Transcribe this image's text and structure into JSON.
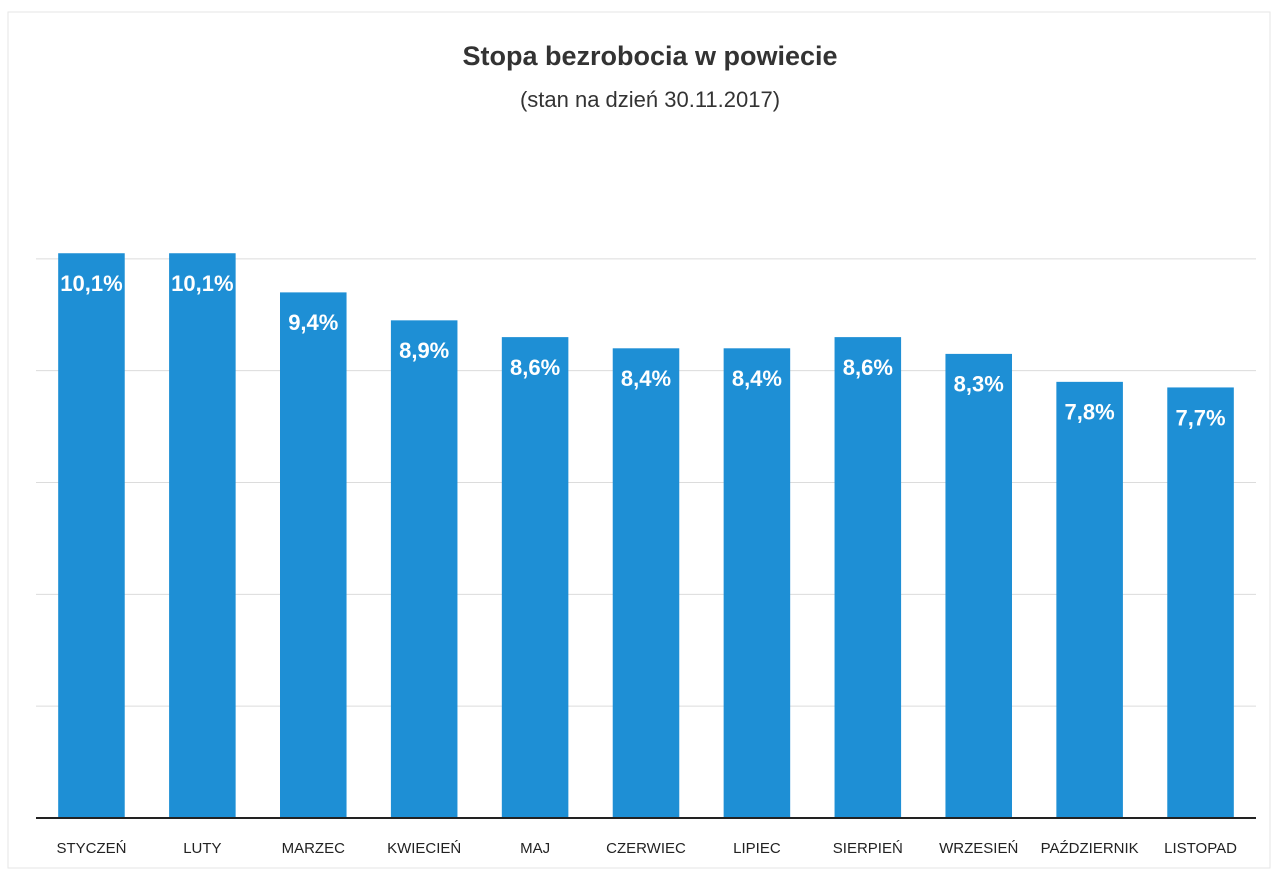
{
  "chart_data": {
    "type": "bar",
    "title": "Stopa bezrobocia w powiecie",
    "subtitle": "(stan na dzień 30.11.2017)",
    "categories": [
      "STYCZEŃ",
      "LUTY",
      "MARZEC",
      "KWIECIEŃ",
      "MAJ",
      "CZERWIEC",
      "LIPIEC",
      "SIERPIEŃ",
      "WRZESIEŃ",
      "PAŹDZIERNIK",
      "LISTOPAD"
    ],
    "values": [
      10.1,
      10.1,
      9.4,
      8.9,
      8.6,
      8.4,
      8.4,
      8.6,
      8.3,
      7.8,
      7.7
    ],
    "value_labels": [
      "10,1%",
      "10,1%",
      "9,4%",
      "8,9%",
      "8,6%",
      "8,4%",
      "8,4%",
      "8,6%",
      "8,3%",
      "7,8%",
      "7,7%"
    ],
    "color": "#1e8fd5",
    "ylim": [
      0,
      12
    ],
    "yticks": [
      0,
      2,
      4,
      6,
      8,
      10
    ],
    "grid": true
  }
}
